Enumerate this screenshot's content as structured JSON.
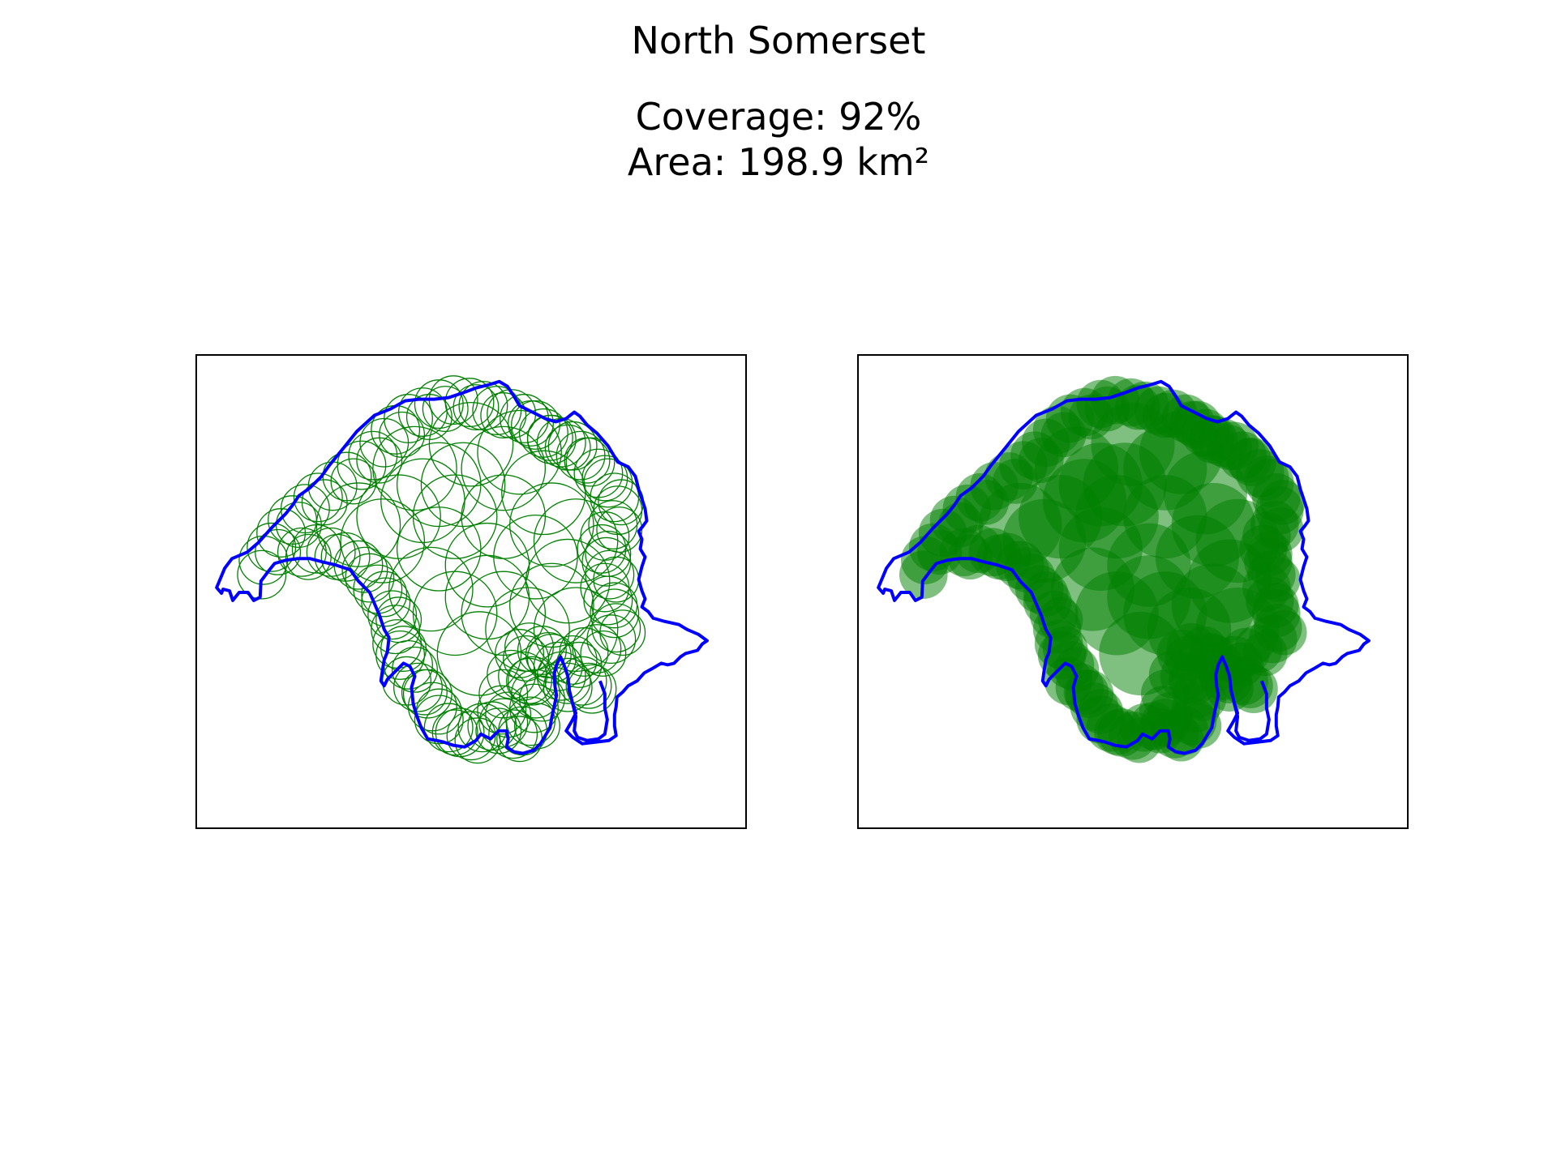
{
  "figure": {
    "title": "North Somerset",
    "coverage_text": "Coverage: 92%",
    "area_text": "Area: 198.9 km²"
  },
  "colors": {
    "boundary": "#0000ff",
    "circle_outline": "#008000",
    "circle_fill": "#008000",
    "panel_border": "#000000",
    "background": "#ffffff"
  },
  "panels": [
    {
      "name": "outline-view",
      "circle_style": "outline"
    },
    {
      "name": "filled-view",
      "circle_style": "filled"
    }
  ]
}
